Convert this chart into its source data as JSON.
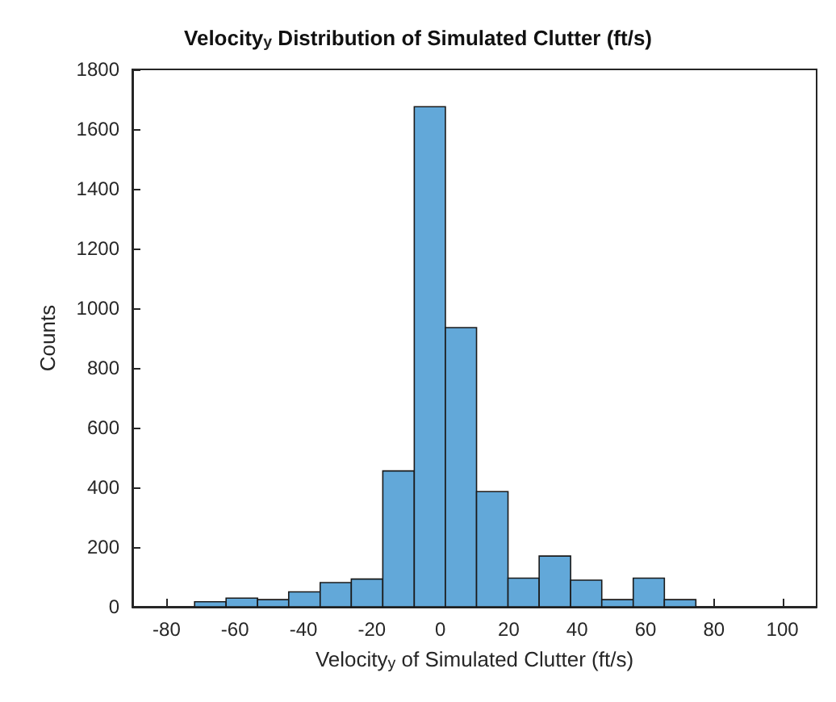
{
  "chart_data": {
    "type": "histogram",
    "title": "Velocity$_{y}$ Distribution of Simulated Clutter (ft/s)",
    "xlabel": "Velocity$_{y}$ of Simulated Clutter (ft/s)",
    "ylabel": "Counts",
    "color": "#62a8d9",
    "bins": [
      -71.8,
      -62.6,
      -53.4,
      -44.3,
      -35.1,
      -26.0,
      -16.8,
      -7.6,
      1.5,
      10.6,
      19.8,
      28.9,
      38.1,
      47.2,
      56.4,
      65.5,
      74.7
    ],
    "values": [
      17,
      29,
      24,
      50,
      81,
      93,
      455,
      1675,
      935,
      386,
      96,
      170,
      89,
      24,
      96,
      24
    ],
    "xlim": [
      -90,
      110
    ],
    "xticks": [
      -80,
      -60,
      -40,
      -20,
      0,
      20,
      40,
      60,
      80,
      100
    ],
    "ylim": [
      0,
      1800
    ],
    "yticks": [
      0,
      200,
      400,
      600,
      800,
      1000,
      1200,
      1400,
      1600,
      1800
    ],
    "grid": false
  }
}
